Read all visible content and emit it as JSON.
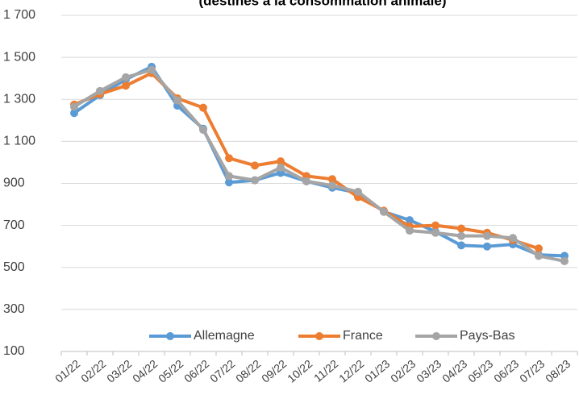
{
  "chart_data": {
    "type": "line",
    "title": "(destinés à la consommation animale)",
    "categories": [
      "01/22",
      "02/22",
      "03/22",
      "04/22",
      "05/22",
      "06/22",
      "07/22",
      "08/22",
      "09/22",
      "10/22",
      "11/22",
      "12/22",
      "01/23",
      "02/23",
      "03/23",
      "04/23",
      "05/23",
      "06/23",
      "07/23",
      "08/23"
    ],
    "series": [
      {
        "name": "Allemagne",
        "color": "#5b9bd5",
        "values": [
          1235,
          1320,
          1395,
          1455,
          1270,
          1160,
          905,
          915,
          950,
          910,
          880,
          855,
          765,
          725,
          670,
          605,
          600,
          610,
          560,
          555
        ]
      },
      {
        "name": "France",
        "color": "#ed7d31",
        "values": [
          1275,
          1325,
          1365,
          1425,
          1305,
          1260,
          1020,
          985,
          1005,
          935,
          920,
          835,
          770,
          695,
          700,
          685,
          665,
          630,
          590,
          null
        ]
      },
      {
        "name": "Pays-Bas",
        "color": "#a5a5a5",
        "values": [
          1265,
          1340,
          1405,
          1440,
          1295,
          1155,
          935,
          915,
          975,
          910,
          890,
          860,
          765,
          675,
          665,
          650,
          650,
          640,
          555,
          530
        ]
      }
    ],
    "ylim": [
      100,
      1700
    ],
    "yticks": [
      100,
      300,
      500,
      700,
      900,
      {
        "value": 1100,
        "label": "1 100"
      },
      {
        "value": 1300,
        "label": "1 300"
      },
      {
        "value": 1500,
        "label": "1 500"
      },
      {
        "value": 1700,
        "label": "1 700"
      }
    ],
    "grid": true,
    "legend": "bottom"
  }
}
